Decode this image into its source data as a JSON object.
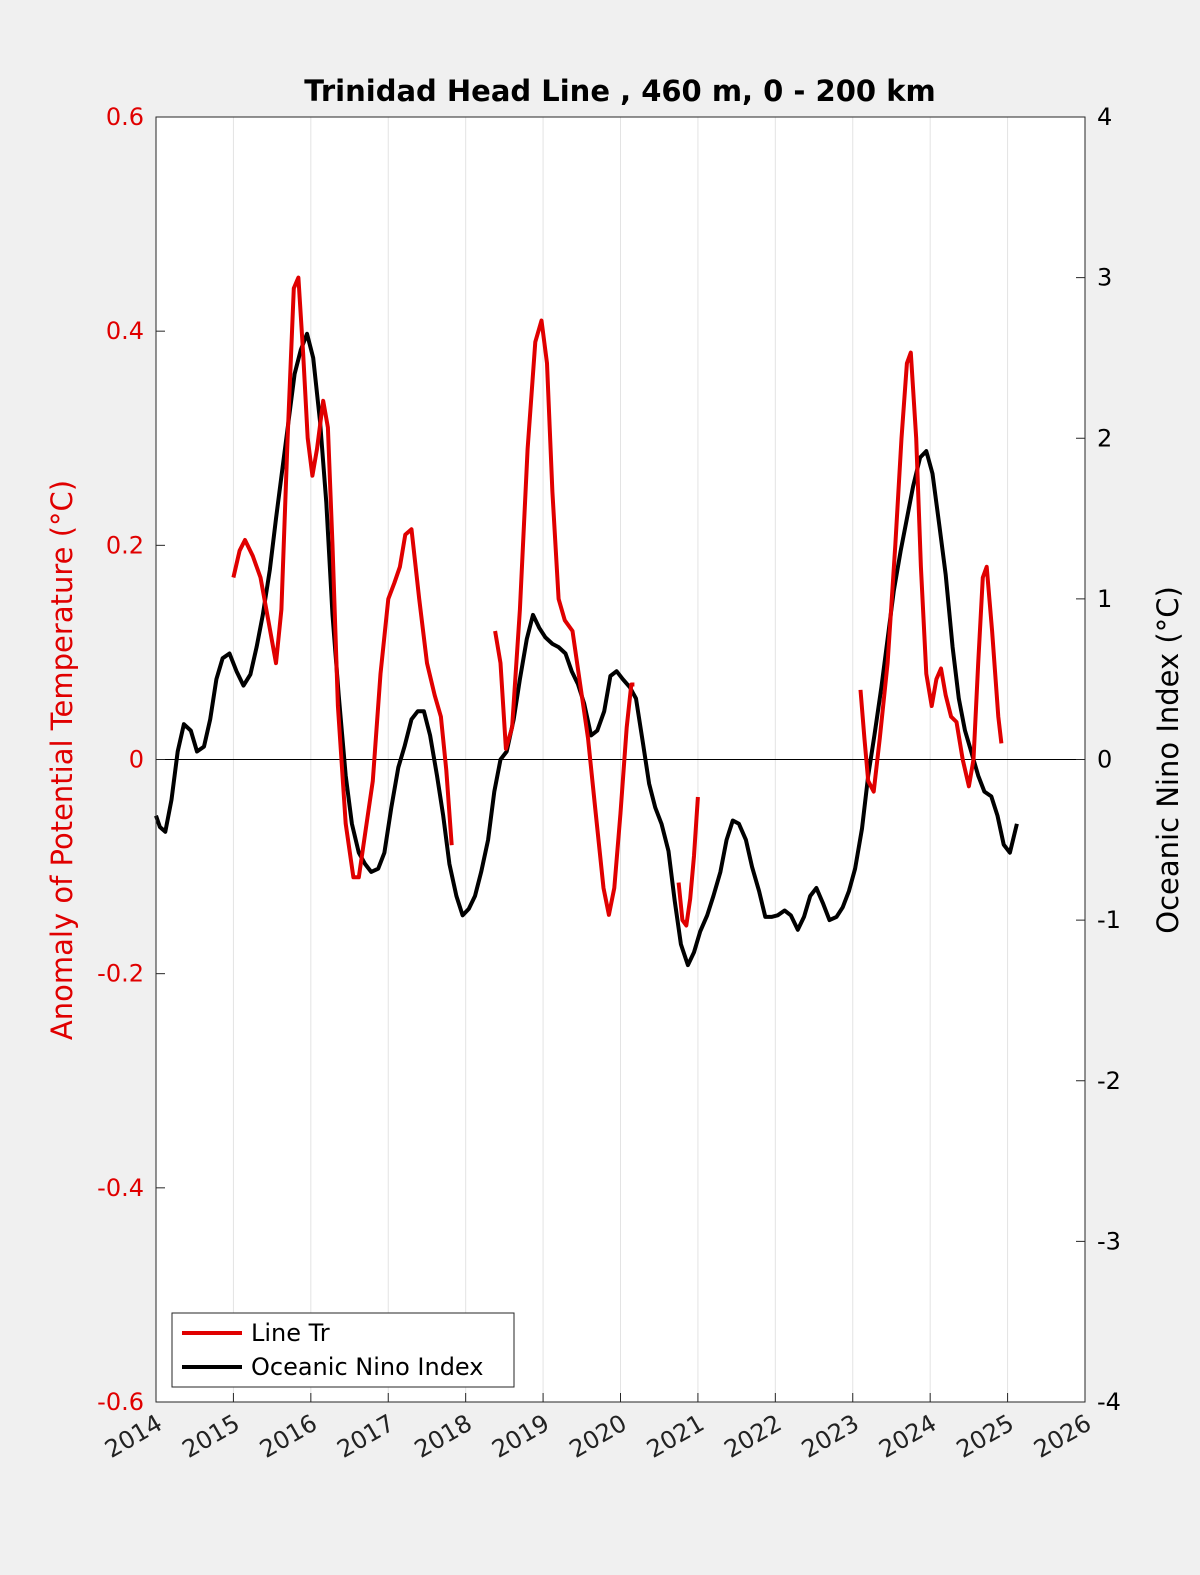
{
  "chart_data": {
    "type": "line",
    "title": "Trinidad Head Line , 460 m, 0 - 200 km",
    "ylabel_left": "Anomaly of Potential Temperature (°C)",
    "ylabel_right": "Oceanic Nino Index (°C)",
    "xlim": [
      2014,
      2026
    ],
    "ylim_left": [
      -0.6,
      0.6
    ],
    "ylim_right": [
      -4,
      4
    ],
    "x_ticks": [
      "2014",
      "2015",
      "2016",
      "2017",
      "2018",
      "2019",
      "2020",
      "2021",
      "2022",
      "2023",
      "2024",
      "2025",
      "2026"
    ],
    "y_ticks_left": [
      "0.6",
      "0.4",
      "0.2",
      "0",
      "-0.2",
      "-0.4",
      "-0.6"
    ],
    "y_ticks_right": [
      "4",
      "3",
      "2",
      "1",
      "0",
      "-1",
      "-2",
      "-3",
      "-4"
    ],
    "grid": "vertical",
    "legend_position": "bottom-left",
    "colors": {
      "line_tr": "#e00000",
      "oni": "#000000",
      "axis_left": "#e00000"
    },
    "series": [
      {
        "name": "Line Tr",
        "axis": "left",
        "segments": [
          [
            [
              2015.0,
              0.17
            ],
            [
              2015.08,
              0.195
            ],
            [
              2015.15,
              0.205
            ],
            [
              2015.25,
              0.19
            ],
            [
              2015.35,
              0.17
            ],
            [
              2015.45,
              0.13
            ],
            [
              2015.55,
              0.09
            ],
            [
              2015.62,
              0.14
            ],
            [
              2015.7,
              0.3
            ],
            [
              2015.78,
              0.44
            ],
            [
              2015.84,
              0.45
            ],
            [
              2015.9,
              0.38
            ],
            [
              2015.96,
              0.3
            ],
            [
              2016.02,
              0.265
            ],
            [
              2016.08,
              0.29
            ],
            [
              2016.16,
              0.335
            ],
            [
              2016.22,
              0.31
            ],
            [
              2016.28,
              0.2
            ],
            [
              2016.35,
              0.05
            ],
            [
              2016.45,
              -0.06
            ],
            [
              2016.55,
              -0.11
            ],
            [
              2016.62,
              -0.11
            ],
            [
              2016.7,
              -0.07
            ],
            [
              2016.8,
              -0.02
            ],
            [
              2016.9,
              0.08
            ],
            [
              2017.0,
              0.15
            ],
            [
              2017.08,
              0.165
            ],
            [
              2017.15,
              0.18
            ],
            [
              2017.22,
              0.21
            ],
            [
              2017.3,
              0.215
            ],
            [
              2017.4,
              0.15
            ],
            [
              2017.5,
              0.09
            ],
            [
              2017.6,
              0.06
            ],
            [
              2017.68,
              0.04
            ],
            [
              2017.75,
              -0.01
            ],
            [
              2017.82,
              -0.08
            ]
          ],
          [
            [
              2018.38,
              0.12
            ],
            [
              2018.45,
              0.09
            ],
            [
              2018.52,
              0.01
            ],
            [
              2018.6,
              0.03
            ],
            [
              2018.7,
              0.14
            ],
            [
              2018.8,
              0.29
            ],
            [
              2018.9,
              0.39
            ],
            [
              2018.98,
              0.41
            ],
            [
              2019.05,
              0.37
            ],
            [
              2019.12,
              0.25
            ],
            [
              2019.2,
              0.15
            ],
            [
              2019.28,
              0.13
            ],
            [
              2019.38,
              0.12
            ],
            [
              2019.48,
              0.07
            ],
            [
              2019.58,
              0.02
            ],
            [
              2019.68,
              -0.05
            ],
            [
              2019.78,
              -0.12
            ],
            [
              2019.85,
              -0.145
            ],
            [
              2019.92,
              -0.12
            ],
            [
              2020.0,
              -0.05
            ],
            [
              2020.08,
              0.03
            ],
            [
              2020.14,
              0.07
            ],
            [
              2020.18,
              0.07
            ]
          ],
          [
            [
              2020.75,
              -0.115
            ],
            [
              2020.8,
              -0.15
            ],
            [
              2020.85,
              -0.155
            ],
            [
              2020.9,
              -0.13
            ],
            [
              2020.95,
              -0.09
            ],
            [
              2021.0,
              -0.035
            ]
          ],
          [
            [
              2023.1,
              0.065
            ],
            [
              2023.15,
              0.02
            ],
            [
              2023.2,
              -0.02
            ],
            [
              2023.27,
              -0.03
            ],
            [
              2023.35,
              0.02
            ],
            [
              2023.45,
              0.09
            ],
            [
              2023.55,
              0.2
            ],
            [
              2023.63,
              0.3
            ],
            [
              2023.7,
              0.37
            ],
            [
              2023.75,
              0.38
            ],
            [
              2023.82,
              0.3
            ],
            [
              2023.88,
              0.18
            ],
            [
              2023.95,
              0.08
            ],
            [
              2024.02,
              0.05
            ],
            [
              2024.08,
              0.075
            ],
            [
              2024.14,
              0.085
            ],
            [
              2024.2,
              0.06
            ],
            [
              2024.27,
              0.04
            ],
            [
              2024.34,
              0.035
            ],
            [
              2024.42,
              0.0
            ],
            [
              2024.5,
              -0.025
            ],
            [
              2024.56,
              0.0
            ],
            [
              2024.62,
              0.09
            ],
            [
              2024.68,
              0.17
            ],
            [
              2024.73,
              0.18
            ],
            [
              2024.8,
              0.12
            ],
            [
              2024.88,
              0.04
            ],
            [
              2024.92,
              0.015
            ]
          ]
        ]
      },
      {
        "name": "Oceanic Nino Index",
        "axis": "right",
        "segments": [
          [
            [
              2014.0,
              -0.35
            ],
            [
              2014.05,
              -0.42
            ],
            [
              2014.12,
              -0.45
            ],
            [
              2014.2,
              -0.25
            ],
            [
              2014.28,
              0.05
            ],
            [
              2014.36,
              0.22
            ],
            [
              2014.45,
              0.18
            ],
            [
              2014.53,
              0.05
            ],
            [
              2014.62,
              0.08
            ],
            [
              2014.7,
              0.25
            ],
            [
              2014.78,
              0.5
            ],
            [
              2014.86,
              0.63
            ],
            [
              2014.95,
              0.66
            ],
            [
              2015.04,
              0.55
            ],
            [
              2015.13,
              0.46
            ],
            [
              2015.22,
              0.53
            ],
            [
              2015.3,
              0.7
            ],
            [
              2015.38,
              0.9
            ],
            [
              2015.47,
              1.18
            ],
            [
              2015.55,
              1.5
            ],
            [
              2015.63,
              1.8
            ],
            [
              2015.71,
              2.1
            ],
            [
              2015.79,
              2.4
            ],
            [
              2015.87,
              2.55
            ],
            [
              2015.95,
              2.65
            ],
            [
              2016.03,
              2.5
            ],
            [
              2016.12,
              2.1
            ],
            [
              2016.2,
              1.6
            ],
            [
              2016.28,
              0.9
            ],
            [
              2016.36,
              0.4
            ],
            [
              2016.45,
              -0.1
            ],
            [
              2016.53,
              -0.4
            ],
            [
              2016.62,
              -0.58
            ],
            [
              2016.7,
              -0.65
            ],
            [
              2016.78,
              -0.7
            ],
            [
              2016.87,
              -0.68
            ],
            [
              2016.95,
              -0.58
            ],
            [
              2017.04,
              -0.3
            ],
            [
              2017.13,
              -0.05
            ],
            [
              2017.21,
              0.08
            ],
            [
              2017.3,
              0.25
            ],
            [
              2017.38,
              0.3
            ],
            [
              2017.46,
              0.3
            ],
            [
              2017.54,
              0.15
            ],
            [
              2017.63,
              -0.1
            ],
            [
              2017.71,
              -0.35
            ],
            [
              2017.79,
              -0.65
            ],
            [
              2017.88,
              -0.85
            ],
            [
              2017.96,
              -0.97
            ],
            [
              2018.04,
              -0.93
            ],
            [
              2018.12,
              -0.85
            ],
            [
              2018.2,
              -0.7
            ],
            [
              2018.29,
              -0.5
            ],
            [
              2018.37,
              -0.2
            ],
            [
              2018.45,
              0.0
            ],
            [
              2018.53,
              0.05
            ],
            [
              2018.62,
              0.25
            ],
            [
              2018.7,
              0.5
            ],
            [
              2018.79,
              0.75
            ],
            [
              2018.87,
              0.9
            ],
            [
              2018.95,
              0.82
            ],
            [
              2019.03,
              0.76
            ],
            [
              2019.12,
              0.72
            ],
            [
              2019.2,
              0.7
            ],
            [
              2019.29,
              0.66
            ],
            [
              2019.37,
              0.55
            ],
            [
              2019.45,
              0.47
            ],
            [
              2019.53,
              0.35
            ],
            [
              2019.62,
              0.15
            ],
            [
              2019.7,
              0.18
            ],
            [
              2019.79,
              0.3
            ],
            [
              2019.87,
              0.52
            ],
            [
              2019.95,
              0.55
            ],
            [
              2020.03,
              0.5
            ],
            [
              2020.12,
              0.45
            ],
            [
              2020.2,
              0.38
            ],
            [
              2020.29,
              0.1
            ],
            [
              2020.37,
              -0.15
            ],
            [
              2020.45,
              -0.3
            ],
            [
              2020.53,
              -0.4
            ],
            [
              2020.62,
              -0.57
            ],
            [
              2020.7,
              -0.88
            ],
            [
              2020.78,
              -1.15
            ],
            [
              2020.87,
              -1.28
            ],
            [
              2020.95,
              -1.2
            ],
            [
              2021.03,
              -1.07
            ],
            [
              2021.12,
              -0.97
            ],
            [
              2021.2,
              -0.85
            ],
            [
              2021.29,
              -0.7
            ],
            [
              2021.37,
              -0.5
            ],
            [
              2021.45,
              -0.38
            ],
            [
              2021.53,
              -0.4
            ],
            [
              2021.62,
              -0.5
            ],
            [
              2021.7,
              -0.67
            ],
            [
              2021.79,
              -0.82
            ],
            [
              2021.87,
              -0.98
            ],
            [
              2021.95,
              -0.98
            ],
            [
              2022.03,
              -0.97
            ],
            [
              2022.12,
              -0.94
            ],
            [
              2022.2,
              -0.97
            ],
            [
              2022.29,
              -1.06
            ],
            [
              2022.37,
              -0.98
            ],
            [
              2022.45,
              -0.85
            ],
            [
              2022.53,
              -0.8
            ],
            [
              2022.62,
              -0.9
            ],
            [
              2022.7,
              -1.0
            ],
            [
              2022.79,
              -0.98
            ],
            [
              2022.87,
              -0.92
            ],
            [
              2022.95,
              -0.82
            ],
            [
              2023.03,
              -0.68
            ],
            [
              2023.12,
              -0.43
            ],
            [
              2023.2,
              -0.1
            ],
            [
              2023.28,
              0.15
            ],
            [
              2023.37,
              0.45
            ],
            [
              2023.45,
              0.75
            ],
            [
              2023.53,
              1.05
            ],
            [
              2023.62,
              1.3
            ],
            [
              2023.7,
              1.5
            ],
            [
              2023.78,
              1.7
            ],
            [
              2023.87,
              1.88
            ],
            [
              2023.95,
              1.92
            ],
            [
              2024.03,
              1.78
            ],
            [
              2024.12,
              1.45
            ],
            [
              2024.2,
              1.15
            ],
            [
              2024.29,
              0.7
            ],
            [
              2024.37,
              0.38
            ],
            [
              2024.45,
              0.18
            ],
            [
              2024.53,
              0.05
            ],
            [
              2024.62,
              -0.1
            ],
            [
              2024.7,
              -0.2
            ],
            [
              2024.79,
              -0.23
            ],
            [
              2024.87,
              -0.35
            ],
            [
              2024.95,
              -0.53
            ],
            [
              2025.03,
              -0.58
            ],
            [
              2025.12,
              -0.4
            ]
          ]
        ]
      }
    ]
  }
}
